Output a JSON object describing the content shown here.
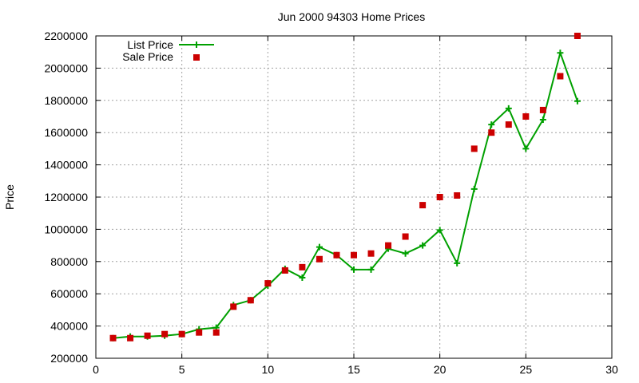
{
  "chart_data": {
    "type": "line",
    "title": "Jun 2000 94303 Home Prices",
    "xlabel": "",
    "ylabel": "Price",
    "xlim": [
      0,
      30
    ],
    "ylim": [
      200000,
      2200000
    ],
    "x_ticks": [
      0,
      5,
      10,
      15,
      20,
      25,
      30
    ],
    "y_ticks": [
      200000,
      400000,
      600000,
      800000,
      1000000,
      1200000,
      1400000,
      1600000,
      1800000,
      2000000,
      2200000
    ],
    "grid": true,
    "legend_position": "top-left",
    "series": [
      {
        "name": "List Price",
        "style": "line-with-plus-markers",
        "color": "#00a000",
        "x": [
          1,
          2,
          3,
          4,
          5,
          6,
          7,
          8,
          9,
          10,
          11,
          12,
          13,
          14,
          15,
          16,
          17,
          18,
          19,
          20,
          21,
          22,
          23,
          24,
          25,
          26,
          27,
          28
        ],
        "y": [
          325000,
          335000,
          335000,
          340000,
          350000,
          380000,
          390000,
          530000,
          560000,
          650000,
          755000,
          700000,
          890000,
          840000,
          750000,
          750000,
          880000,
          850000,
          900000,
          995000,
          790000,
          1250000,
          1650000,
          1750000,
          1500000,
          1680000,
          2095000,
          1795000
        ]
      },
      {
        "name": "Sale Price",
        "style": "square-markers",
        "color": "#cc0000",
        "x": [
          1,
          2,
          3,
          4,
          5,
          6,
          7,
          8,
          9,
          10,
          11,
          12,
          13,
          14,
          15,
          16,
          17,
          18,
          19,
          20,
          21,
          22,
          23,
          24,
          25,
          26,
          27,
          28
        ],
        "y": [
          325000,
          325000,
          340000,
          350000,
          350000,
          360000,
          360000,
          520000,
          560000,
          665000,
          745000,
          765000,
          815000,
          840000,
          840000,
          850000,
          900000,
          955000,
          1150000,
          1200000,
          1210000,
          1500000,
          1600000,
          1650000,
          1700000,
          1740000,
          1950000,
          2200000
        ]
      }
    ]
  }
}
